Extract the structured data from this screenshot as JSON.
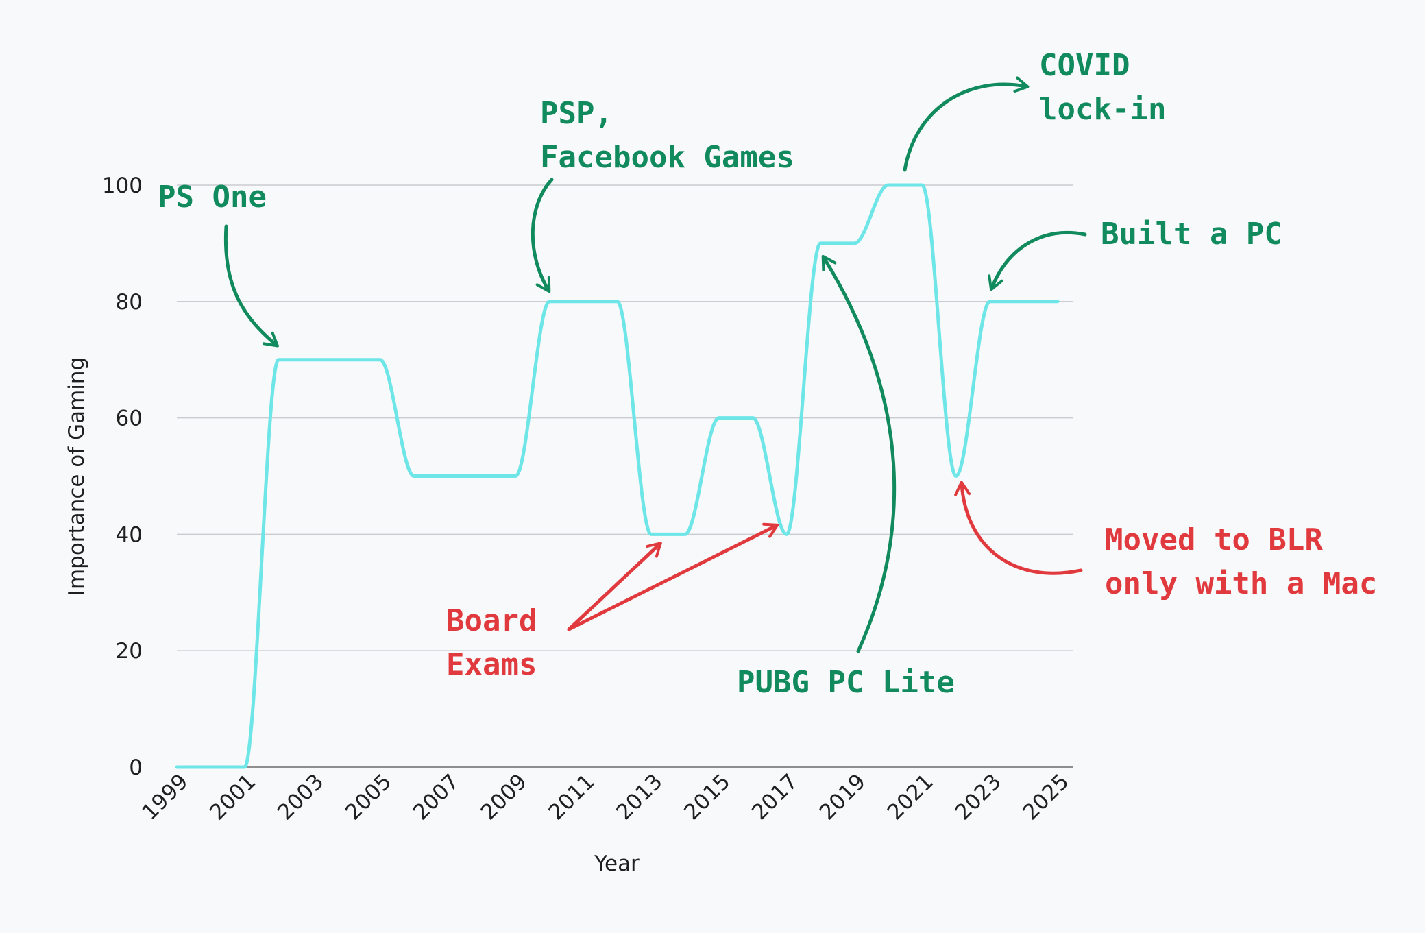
{
  "colors": {
    "background": "#f8f9fa",
    "line": "#6ee6e8",
    "positive_annotation": "#118a5e",
    "negative_annotation": "#e03a3e"
  },
  "chart_data": {
    "type": "line",
    "xlabel": "Year",
    "ylabel": "Importance of Gaming",
    "xlim": [
      1999,
      2025
    ],
    "ylim": [
      0,
      100
    ],
    "xticks": [
      "1999",
      "2001",
      "2003",
      "2005",
      "2007",
      "2009",
      "2011",
      "2013",
      "2015",
      "2017",
      "2019",
      "2021",
      "2023",
      "2025"
    ],
    "yticks": [
      "0",
      "20",
      "40",
      "60",
      "80",
      "100"
    ],
    "grid": true,
    "series": [
      {
        "x": [
          1999,
          2000,
          2001,
          2002,
          2003,
          2004,
          2005,
          2006,
          2007,
          2008,
          2009,
          2010,
          2011,
          2012,
          2013,
          2014,
          2015,
          2016,
          2017,
          2018,
          2019,
          2020,
          2021,
          2022,
          2023,
          2024,
          2025
        ],
        "y": [
          0,
          0,
          0,
          70,
          70,
          70,
          70,
          50,
          50,
          50,
          50,
          80,
          80,
          80,
          40,
          40,
          60,
          60,
          40,
          90,
          90,
          100,
          100,
          50,
          80,
          80,
          80
        ]
      }
    ],
    "annotations": [
      {
        "id": "ps-one",
        "lines": [
          "PS One"
        ],
        "tone": "positive"
      },
      {
        "id": "psp",
        "lines": [
          "PSP,",
          "Facebook Games"
        ],
        "tone": "positive"
      },
      {
        "id": "covid",
        "lines": [
          "COVID",
          "lock-in"
        ],
        "tone": "positive"
      },
      {
        "id": "built-pc",
        "lines": [
          "Built a PC"
        ],
        "tone": "positive"
      },
      {
        "id": "board-exams",
        "lines": [
          "Board",
          "Exams"
        ],
        "tone": "negative"
      },
      {
        "id": "pubg",
        "lines": [
          "PUBG PC Lite"
        ],
        "tone": "positive"
      },
      {
        "id": "blr",
        "lines": [
          "Moved to BLR",
          "only with a Mac"
        ],
        "tone": "negative"
      }
    ]
  }
}
